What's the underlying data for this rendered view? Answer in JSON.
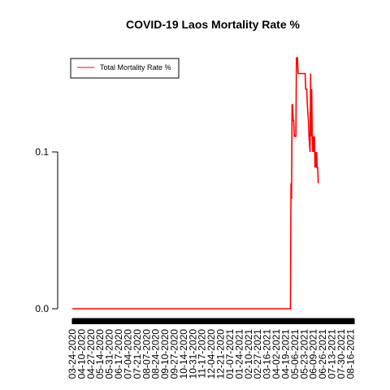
{
  "chart_data": {
    "type": "line",
    "title": "COVID-19 Laos Mortality Rate %",
    "xlabel": "",
    "ylabel": "",
    "ylim": [
      0,
      0.15
    ],
    "yticks": [
      {
        "value": 0.0,
        "label": "0.0"
      },
      {
        "value": 0.1,
        "label": "0.1"
      }
    ],
    "grid": false,
    "legend": {
      "position": "top-left",
      "entries": [
        "Total Mortality Rate %"
      ]
    },
    "x_range": [
      "03-24-2020",
      "08-23-2021"
    ],
    "xtick_labels": [
      "03-24-2020",
      "04-10-2020",
      "04-27-2020",
      "05-14-2020",
      "05-31-2020",
      "06-17-2020",
      "07-04-2020",
      "07-21-2020",
      "08-07-2020",
      "08-24-2020",
      "09-10-2020",
      "09-27-2020",
      "10-14-2020",
      "10-31-2020",
      "11-17-2020",
      "12-04-2020",
      "12-21-2020",
      "01-07-2021",
      "01-24-2021",
      "02-10-2021",
      "02-27-2021",
      "03-16-2021",
      "04-02-2021",
      "04-19-2021",
      "05-06-2021",
      "05-23-2021",
      "06-09-2021",
      "06-26-2021",
      "07-13-2021",
      "07-30-2021",
      "08-16-2021"
    ],
    "series": [
      {
        "name": "Total Mortality Rate %",
        "color": "#ff0000",
        "points": [
          {
            "x": "03-24-2020",
            "y": 0.0
          },
          {
            "x": "04-28-2021",
            "y": 0.0
          },
          {
            "x": "04-29-2021",
            "y": 0.08
          },
          {
            "x": "04-30-2021",
            "y": 0.07
          },
          {
            "x": "05-01-2021",
            "y": 0.13
          },
          {
            "x": "05-02-2021",
            "y": 0.13
          },
          {
            "x": "05-03-2021",
            "y": 0.12
          },
          {
            "x": "05-04-2021",
            "y": 0.12
          },
          {
            "x": "05-05-2021",
            "y": 0.11
          },
          {
            "x": "05-08-2021",
            "y": 0.11
          },
          {
            "x": "05-09-2021",
            "y": 0.16
          },
          {
            "x": "05-11-2021",
            "y": 0.16
          },
          {
            "x": "05-12-2021",
            "y": 0.15
          },
          {
            "x": "05-25-2021",
            "y": 0.15
          },
          {
            "x": "05-26-2021",
            "y": 0.14
          },
          {
            "x": "05-28-2021",
            "y": 0.14
          },
          {
            "x": "05-29-2021",
            "y": 0.13
          },
          {
            "x": "05-31-2021",
            "y": 0.12
          },
          {
            "x": "06-01-2021",
            "y": 0.11
          },
          {
            "x": "06-03-2021",
            "y": 0.1
          },
          {
            "x": "06-04-2021",
            "y": 0.15
          },
          {
            "x": "06-05-2021",
            "y": 0.11
          },
          {
            "x": "06-06-2021",
            "y": 0.14
          },
          {
            "x": "06-07-2021",
            "y": 0.11
          },
          {
            "x": "06-08-2021",
            "y": 0.1
          },
          {
            "x": "06-09-2021",
            "y": 0.11
          },
          {
            "x": "06-10-2021",
            "y": 0.1
          },
          {
            "x": "06-11-2021",
            "y": 0.11
          },
          {
            "x": "06-12-2021",
            "y": 0.09
          },
          {
            "x": "06-13-2021",
            "y": 0.1
          },
          {
            "x": "06-14-2021",
            "y": 0.09
          },
          {
            "x": "06-15-2021",
            "y": 0.1
          },
          {
            "x": "06-16-2021",
            "y": 0.09
          },
          {
            "x": "06-17-2021",
            "y": 0.09
          },
          {
            "x": "06-18-2021",
            "y": 0.08
          }
        ]
      }
    ]
  }
}
